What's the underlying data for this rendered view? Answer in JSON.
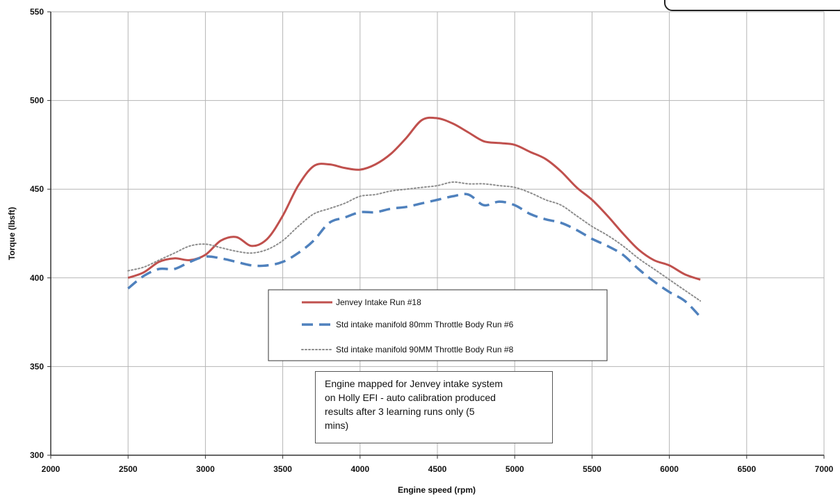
{
  "chart_data": {
    "type": "line",
    "xlabel": "Engine speed (rpm)",
    "ylabel": "Torque (lbsft)",
    "xlim": [
      2000,
      7000
    ],
    "ylim": [
      300,
      550
    ],
    "x_ticks": [
      "2000",
      "2500",
      "3000",
      "3500",
      "4000",
      "4500",
      "5000",
      "5500",
      "6000",
      "6500",
      "7000"
    ],
    "y_ticks": [
      "300",
      "350",
      "400",
      "450",
      "500",
      "550"
    ],
    "grid": true,
    "legend_position": "center",
    "annotation": [
      "Engine mapped for Jenvey intake system",
      "on Holly EFI - auto calibration produced",
      "results after 3 learning runs only (5",
      "mins)"
    ],
    "series": [
      {
        "name": "Jenvey Intake Run #18",
        "color": "#c0504d",
        "style": "solid",
        "points": [
          [
            2500,
            400
          ],
          [
            2600,
            403
          ],
          [
            2700,
            409
          ],
          [
            2800,
            411
          ],
          [
            2900,
            410
          ],
          [
            3000,
            413
          ],
          [
            3100,
            421
          ],
          [
            3200,
            423
          ],
          [
            3300,
            418
          ],
          [
            3400,
            422
          ],
          [
            3500,
            435
          ],
          [
            3600,
            452
          ],
          [
            3700,
            463
          ],
          [
            3800,
            464
          ],
          [
            3900,
            462
          ],
          [
            4000,
            461
          ],
          [
            4100,
            464
          ],
          [
            4200,
            470
          ],
          [
            4300,
            479
          ],
          [
            4400,
            489
          ],
          [
            4500,
            490
          ],
          [
            4600,
            487
          ],
          [
            4700,
            482
          ],
          [
            4800,
            477
          ],
          [
            4900,
            476
          ],
          [
            5000,
            475
          ],
          [
            5100,
            471
          ],
          [
            5200,
            467
          ],
          [
            5300,
            460
          ],
          [
            5400,
            451
          ],
          [
            5500,
            444
          ],
          [
            5600,
            435
          ],
          [
            5700,
            425
          ],
          [
            5800,
            416
          ],
          [
            5900,
            410
          ],
          [
            6000,
            407
          ],
          [
            6100,
            402
          ],
          [
            6200,
            399
          ]
        ]
      },
      {
        "name": "Std intake manifold 80mm Throttle Body Run #6",
        "color": "#4f81bd",
        "style": "dashed",
        "points": [
          [
            2500,
            394
          ],
          [
            2600,
            401
          ],
          [
            2700,
            405
          ],
          [
            2800,
            405
          ],
          [
            2900,
            409
          ],
          [
            3000,
            412
          ],
          [
            3100,
            411
          ],
          [
            3200,
            409
          ],
          [
            3300,
            407
          ],
          [
            3400,
            407
          ],
          [
            3500,
            409
          ],
          [
            3600,
            414
          ],
          [
            3700,
            421
          ],
          [
            3800,
            431
          ],
          [
            3900,
            434
          ],
          [
            4000,
            437
          ],
          [
            4100,
            437
          ],
          [
            4200,
            439
          ],
          [
            4300,
            440
          ],
          [
            4400,
            442
          ],
          [
            4500,
            444
          ],
          [
            4600,
            446
          ],
          [
            4700,
            447
          ],
          [
            4800,
            441
          ],
          [
            4900,
            443
          ],
          [
            5000,
            441
          ],
          [
            5100,
            436
          ],
          [
            5200,
            433
          ],
          [
            5300,
            431
          ],
          [
            5400,
            427
          ],
          [
            5500,
            422
          ],
          [
            5600,
            418
          ],
          [
            5700,
            413
          ],
          [
            5800,
            405
          ],
          [
            5900,
            398
          ],
          [
            6000,
            392
          ],
          [
            6100,
            387
          ],
          [
            6200,
            378
          ]
        ]
      },
      {
        "name": "Std intake manifold 90MM Throttle Body Run #8",
        "color": "#8c8c8c",
        "style": "dotted",
        "points": [
          [
            2500,
            404
          ],
          [
            2600,
            406
          ],
          [
            2700,
            410
          ],
          [
            2800,
            414
          ],
          [
            2900,
            418
          ],
          [
            3000,
            419
          ],
          [
            3100,
            417
          ],
          [
            3200,
            415
          ],
          [
            3300,
            414
          ],
          [
            3400,
            416
          ],
          [
            3500,
            421
          ],
          [
            3600,
            429
          ],
          [
            3700,
            436
          ],
          [
            3800,
            439
          ],
          [
            3900,
            442
          ],
          [
            4000,
            446
          ],
          [
            4100,
            447
          ],
          [
            4200,
            449
          ],
          [
            4300,
            450
          ],
          [
            4400,
            451
          ],
          [
            4500,
            452
          ],
          [
            4600,
            454
          ],
          [
            4700,
            453
          ],
          [
            4800,
            453
          ],
          [
            4900,
            452
          ],
          [
            5000,
            451
          ],
          [
            5100,
            448
          ],
          [
            5200,
            444
          ],
          [
            5300,
            441
          ],
          [
            5400,
            435
          ],
          [
            5500,
            429
          ],
          [
            5600,
            424
          ],
          [
            5700,
            418
          ],
          [
            5800,
            411
          ],
          [
            5900,
            405
          ],
          [
            6000,
            399
          ],
          [
            6100,
            393
          ],
          [
            6200,
            387
          ]
        ]
      }
    ]
  }
}
